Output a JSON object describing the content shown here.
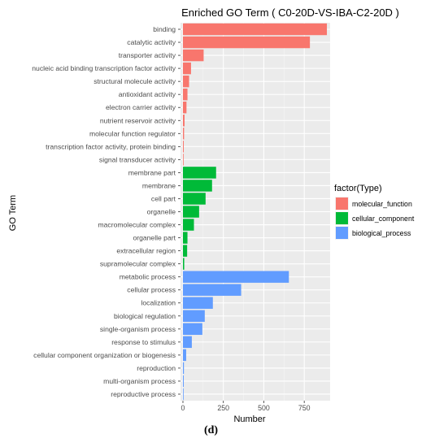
{
  "chart_data": {
    "type": "bar",
    "orientation": "horizontal",
    "title": "Enriched GO Term ( C0-20D-VS-IBA-C2-20D )",
    "xlabel": "Number",
    "ylabel": "GO Term",
    "xlim": [
      -15,
      910
    ],
    "xticks": [
      "0",
      "250",
      "500",
      "750"
    ],
    "xtick_values": [
      0,
      250,
      500,
      750
    ],
    "grid": true,
    "legend": {
      "title": "factor(Type)",
      "position": "right",
      "entries": [
        "molecular_function",
        "cellular_component",
        "biological_process"
      ]
    },
    "series": [
      {
        "name": "molecular_function",
        "color": "#F8766D",
        "categories": [
          "binding",
          "catalytic activity",
          "transporter activity",
          "nucleic acid binding transcription factor activity",
          "structural molecule activity",
          "antioxidant activity",
          "electron carrier activity",
          "nutrient reservoir activity",
          "molecular function regulator",
          "transcription factor activity, protein binding",
          "signal transducer activity"
        ],
        "values": [
          890,
          785,
          128,
          50,
          38,
          28,
          22,
          10,
          7,
          5,
          3
        ]
      },
      {
        "name": "cellular_component",
        "color": "#00BA38",
        "categories": [
          "membrane part",
          "membrane",
          "cell part",
          "organelle",
          "macromolecular complex",
          "organelle part",
          "extracellular region",
          "supramolecular complex"
        ],
        "values": [
          205,
          180,
          140,
          100,
          68,
          28,
          26,
          8
        ]
      },
      {
        "name": "biological_process",
        "color": "#619CFF",
        "categories": [
          "metabolic process",
          "cellular process",
          "localization",
          "biological regulation",
          "single-organism process",
          "response to stimulus",
          "cellular component organization or biogenesis",
          "reproduction",
          "multi-organism process",
          "reproductive process"
        ],
        "values": [
          655,
          360,
          185,
          135,
          120,
          55,
          20,
          6,
          5,
          4
        ]
      }
    ]
  },
  "caption": "(d)"
}
